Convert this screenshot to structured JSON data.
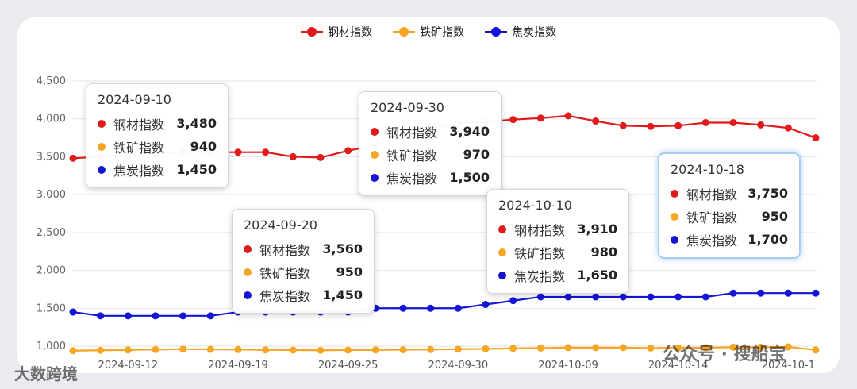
{
  "colors": {
    "steel": "#e01b1b",
    "ore": "#f5a623",
    "coke": "#1515d6"
  },
  "chart_data": {
    "type": "line",
    "y_ticks": [
      "1,000",
      "1,500",
      "2,000",
      "2,500",
      "3,000",
      "3,500",
      "4,000",
      "4,500"
    ],
    "ylim": [
      1000,
      4500
    ],
    "x_tick_labels": [
      "2024-09-12",
      "2024-09-19",
      "2024-09-25",
      "2024-09-30",
      "2024-10-09",
      "2024-10-14",
      "2024-10-1"
    ],
    "x_tick_index": [
      2,
      6,
      10,
      14,
      18,
      22,
      26
    ],
    "grid": "horizontal",
    "legend_position": "top-center",
    "series": [
      {
        "name": "钢材指数",
        "color": "#e01b1b",
        "values": [
          3480,
          3500,
          3520,
          3540,
          3560,
          3560,
          3560,
          3560,
          3500,
          3490,
          3580,
          3650,
          3750,
          3880,
          3940,
          3960,
          3990,
          4010,
          4040,
          3970,
          3910,
          3900,
          3910,
          3950,
          3950,
          3920,
          3880,
          3750
        ]
      },
      {
        "name": "铁矿指数",
        "color": "#f5a623",
        "values": [
          940,
          945,
          950,
          955,
          960,
          958,
          955,
          950,
          948,
          945,
          948,
          950,
          952,
          955,
          960,
          965,
          970,
          975,
          980,
          980,
          980,
          975,
          978,
          980,
          985,
          985,
          990,
          950
        ]
      },
      {
        "name": "焦炭指数",
        "color": "#1515d6",
        "values": [
          1450,
          1400,
          1400,
          1400,
          1400,
          1400,
          1450,
          1450,
          1450,
          1450,
          1450,
          1500,
          1500,
          1500,
          1500,
          1550,
          1600,
          1650,
          1650,
          1650,
          1650,
          1650,
          1650,
          1650,
          1700,
          1700,
          1700,
          1700
        ]
      }
    ]
  },
  "tooltips": [
    {
      "date": "2024-09-10",
      "rows": [
        {
          "name": "钢材指数",
          "value": "3,480"
        },
        {
          "name": "铁矿指数",
          "value": "940"
        },
        {
          "name": "焦炭指数",
          "value": "1,450"
        }
      ]
    },
    {
      "date": "2024-09-30",
      "rows": [
        {
          "name": "钢材指数",
          "value": "3,940"
        },
        {
          "name": "铁矿指数",
          "value": "970"
        },
        {
          "name": "焦炭指数",
          "value": "1,500"
        }
      ]
    },
    {
      "date": "2024-09-20",
      "rows": [
        {
          "name": "钢材指数",
          "value": "3,560"
        },
        {
          "name": "铁矿指数",
          "value": "950"
        },
        {
          "name": "焦炭指数",
          "value": "1,450"
        }
      ]
    },
    {
      "date": "2024-10-10",
      "rows": [
        {
          "name": "钢材指数",
          "value": "3,910"
        },
        {
          "name": "铁矿指数",
          "value": "980"
        },
        {
          "name": "焦炭指数",
          "value": "1,650"
        }
      ]
    },
    {
      "date": "2024-10-18",
      "rows": [
        {
          "name": "钢材指数",
          "value": "3,750"
        },
        {
          "name": "铁矿指数",
          "value": "950"
        },
        {
          "name": "焦炭指数",
          "value": "1,700"
        }
      ]
    }
  ],
  "watermarks": {
    "left": "大数跨境",
    "right": "公众号 · 搜船宝"
  }
}
